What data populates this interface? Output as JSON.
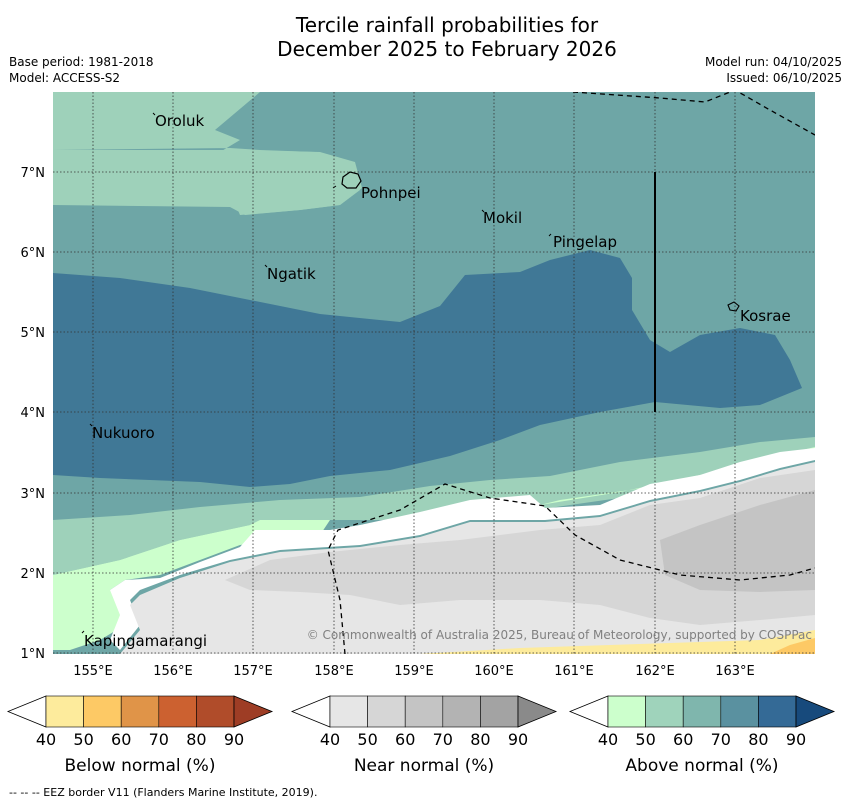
{
  "title_line1": "Tercile rainfall probabilities for",
  "title_line2": "December 2025 to February 2026",
  "base_period": "Base period: 1981-2018",
  "model": "Model: ACCESS-S2",
  "model_run": "Model run: 04/10/2025",
  "issued": "Issued: 06/10/2025",
  "copyright": "© Commonwealth of Australia 2025, Bureau of Meteorology, supported by COSPPac",
  "footer": "--  --  -- EEZ border V11 (Flanders Marine Institute, 2019).",
  "lon_labels": [
    "155°E",
    "156°E",
    "157°E",
    "158°E",
    "159°E",
    "160°E",
    "161°E",
    "162°E",
    "163°E"
  ],
  "lat_labels": [
    "7°N",
    "6°N",
    "5°N",
    "4°N",
    "3°N",
    "2°N",
    "1°N"
  ],
  "places": [
    {
      "name": "Oroluk"
    },
    {
      "name": "Pohnpei"
    },
    {
      "name": "Mokil"
    },
    {
      "name": "Pingelap"
    },
    {
      "name": "Ngatik"
    },
    {
      "name": "Kosrae"
    },
    {
      "name": "Nukuoro"
    },
    {
      "name": "Kapingamarangi"
    }
  ],
  "colorbars": [
    {
      "title": "Below normal (%)",
      "ticks": [
        "40",
        "50",
        "60",
        "70",
        "80",
        "90"
      ],
      "colors": [
        "#ffffff",
        "#fdeb9c",
        "#fdc965",
        "#e09448",
        "#cc6130",
        "#b04c2a",
        "#9e3d25"
      ]
    },
    {
      "title": "Near normal (%)",
      "ticks": [
        "40",
        "50",
        "60",
        "70",
        "80",
        "90"
      ],
      "colors": [
        "#ffffff",
        "#e6e6e6",
        "#d6d6d6",
        "#c4c4c4",
        "#b3b3b3",
        "#a3a3a3",
        "#8a8a8a"
      ]
    },
    {
      "title": "Above normal (%)",
      "ticks": [
        "40",
        "50",
        "60",
        "70",
        "80",
        "90"
      ],
      "colors": [
        "#ffffff",
        "#ccffcc",
        "#9fd3bb",
        "#7fb6ad",
        "#5a91a0",
        "#346a96",
        "#174a7c"
      ]
    }
  ],
  "map_colors": {
    "above_50": "#9ed1ba",
    "above_60": "#6ea6a6",
    "above_70": "#407896",
    "above_40": "#ccffcc",
    "near_40": "#e6e6e6",
    "near_50": "#d6d6d6",
    "near_60": "#c4c4c4",
    "below_40": "#fdeb9c",
    "below_50": "#fdc965"
  }
}
